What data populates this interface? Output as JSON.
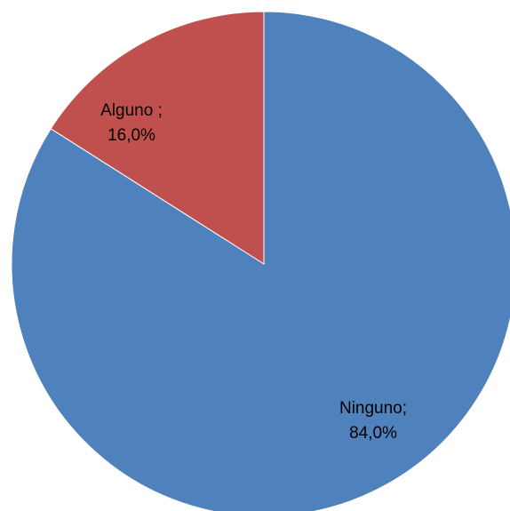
{
  "chart_data": {
    "type": "pie",
    "title": "",
    "start_angle_deg": 0,
    "direction": "clockwise",
    "legend": "none",
    "slices": [
      {
        "label": "Ninguno",
        "value": 84.0,
        "color": "#4F81BD",
        "label_lines": [
          "Ninguno;",
          "84,0%"
        ]
      },
      {
        "label": "Alguno",
        "value": 16.0,
        "color": "#C0504D",
        "label_lines": [
          "Alguno ;",
          "16,0%"
        ]
      }
    ]
  }
}
